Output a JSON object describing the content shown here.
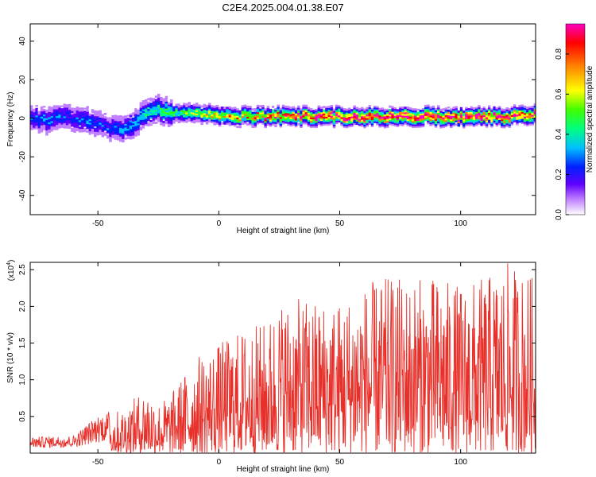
{
  "title": "C2E4.2025.004.01.38.E07",
  "chart_data": [
    {
      "type": "heatmap",
      "name": "spectrogram",
      "xlabel": "Height of straight line (km)",
      "ylabel": "Frequency (Hz)",
      "xlim": [
        -78,
        131
      ],
      "ylim": [
        -50,
        49
      ],
      "xticks": [
        -50,
        0,
        50,
        100
      ],
      "yticks": [
        -40,
        -20,
        0,
        20,
        40
      ],
      "colorbar": {
        "label": "Normalized spectral amplitude",
        "range": [
          0,
          0.95
        ],
        "ticks": [
          0.0,
          0.2,
          0.4,
          0.6,
          0.8
        ],
        "tick_labels": [
          "0.0",
          "0.2",
          "0.4",
          "0.6",
          "0.8"
        ],
        "colors": [
          "#ffffff",
          "#c080ff",
          "#6000ff",
          "#0020ff",
          "#00c0ff",
          "#00ff80",
          "#40ff00",
          "#ffff00",
          "#ff8000",
          "#ff0000",
          "#ff00c0"
        ]
      },
      "ridge": {
        "x": [
          -78,
          -70,
          -65,
          -60,
          -55,
          -50,
          -45,
          -40,
          -35,
          -30,
          -25,
          -20,
          -15,
          -10,
          -5,
          0,
          10,
          20,
          30,
          40,
          50,
          60,
          70,
          80,
          90,
          100,
          110,
          120,
          131
        ],
        "center_freq": [
          0,
          -1,
          1,
          0,
          -2,
          -3,
          -6,
          -5,
          -2,
          3,
          5,
          2,
          3,
          2,
          2,
          1,
          1,
          1,
          1,
          1,
          1,
          1,
          1,
          1,
          1,
          1,
          1,
          1,
          2
        ],
        "peak_amplitude": [
          0.3,
          0.35,
          0.3,
          0.3,
          0.35,
          0.3,
          0.3,
          0.35,
          0.4,
          0.45,
          0.5,
          0.5,
          0.55,
          0.6,
          0.65,
          0.7,
          0.75,
          0.8,
          0.85,
          0.9,
          0.9,
          0.95,
          0.9,
          0.95,
          0.9,
          0.95,
          0.9,
          0.95,
          0.9
        ]
      }
    },
    {
      "type": "line",
      "name": "snr",
      "xlabel": "Height of straight line (km)",
      "ylabel": "SNR (10 * v/v)",
      "y_multiplier": "(x10",
      "y_multiplier_exp": "4",
      "y_multiplier_close": ")",
      "xlim": [
        -78,
        131
      ],
      "ylim": [
        0,
        2.6
      ],
      "xticks": [
        -50,
        0,
        50,
        100
      ],
      "yticks": [
        0.5,
        1.0,
        1.5,
        2.0,
        2.5
      ],
      "series": [
        {
          "color": "#e8302a",
          "envelope_x": [
            -78,
            -60,
            -50,
            -40,
            -30,
            -25,
            -20,
            -10,
            0,
            10,
            20,
            25,
            30,
            40,
            50,
            60,
            70,
            80,
            90,
            100,
            110,
            120,
            131
          ],
          "envelope_y": [
            0.2,
            0.22,
            0.5,
            0.6,
            0.9,
            0.7,
            0.8,
            1.3,
            1.5,
            1.7,
            1.8,
            2.1,
            2.1,
            2.1,
            2.1,
            2.3,
            2.4,
            2.4,
            2.4,
            2.3,
            2.4,
            2.6,
            2.4
          ]
        }
      ]
    }
  ]
}
